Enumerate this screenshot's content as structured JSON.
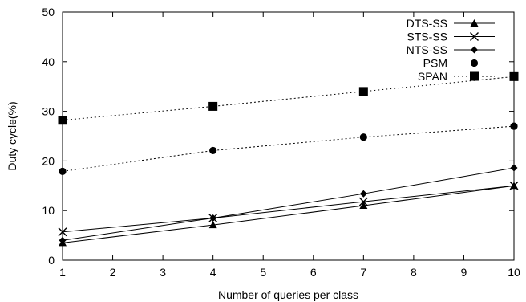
{
  "chart_data": {
    "type": "line",
    "title": "",
    "xlabel": "Number of queries per class",
    "ylabel": "Duty cycle(%)",
    "xlim": [
      1,
      10
    ],
    "ylim": [
      0,
      50
    ],
    "xticks": [
      1,
      2,
      3,
      4,
      5,
      6,
      7,
      8,
      9,
      10
    ],
    "yticks": [
      0,
      10,
      20,
      30,
      40,
      50
    ],
    "grid": false,
    "legend_position": "top-right",
    "x": [
      1,
      4,
      7,
      10
    ],
    "series": [
      {
        "name": "DTS-SS",
        "marker": "triangle",
        "line_style": "solid",
        "values": [
          3.5,
          7.1,
          11.0,
          15.0
        ]
      },
      {
        "name": "STS-SS",
        "marker": "x",
        "line_style": "solid",
        "values": [
          5.7,
          8.5,
          11.8,
          15.0
        ]
      },
      {
        "name": "NTS-SS",
        "marker": "diamond",
        "line_style": "solid",
        "values": [
          4.0,
          8.5,
          13.4,
          18.6
        ]
      },
      {
        "name": "PSM",
        "marker": "circle",
        "line_style": "dotted",
        "values": [
          17.9,
          22.1,
          24.8,
          27.0
        ]
      },
      {
        "name": "SPAN",
        "marker": "square",
        "line_style": "dotted",
        "values": [
          28.2,
          31.0,
          34.0,
          37.0
        ]
      }
    ]
  }
}
